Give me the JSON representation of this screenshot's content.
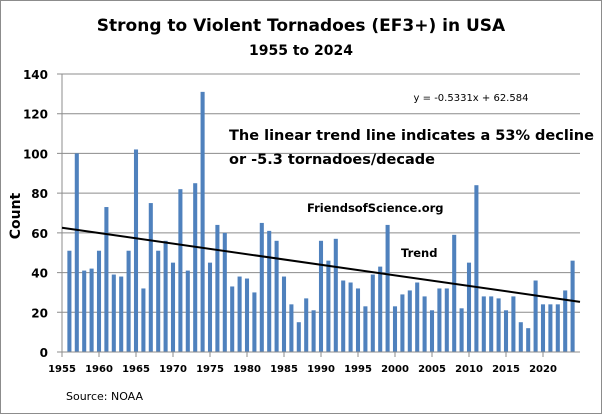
{
  "chart_data": {
    "type": "bar",
    "title": "Strong to Violent Tornadoes  (EF3+) in USA",
    "subtitle": "1955 to 2024",
    "xlabel": "",
    "ylabel": "Count",
    "ylim": [
      0,
      140
    ],
    "xlim": [
      1955,
      2025
    ],
    "yticks": [
      0,
      20,
      40,
      60,
      80,
      100,
      120,
      140
    ],
    "xticks": [
      1955,
      1960,
      1965,
      1970,
      1975,
      1980,
      1985,
      1990,
      1995,
      2000,
      2005,
      2010,
      2015,
      2020
    ],
    "grid": true,
    "bar_color": "#4f81bd",
    "categories": [
      1956,
      1957,
      1958,
      1959,
      1960,
      1961,
      1962,
      1963,
      1964,
      1965,
      1966,
      1967,
      1968,
      1969,
      1970,
      1971,
      1972,
      1973,
      1974,
      1975,
      1976,
      1977,
      1978,
      1979,
      1980,
      1981,
      1982,
      1983,
      1984,
      1985,
      1986,
      1987,
      1988,
      1989,
      1990,
      1991,
      1992,
      1993,
      1994,
      1995,
      1996,
      1997,
      1998,
      1999,
      2000,
      2001,
      2002,
      2003,
      2004,
      2005,
      2006,
      2007,
      2008,
      2009,
      2010,
      2011,
      2012,
      2013,
      2014,
      2015,
      2016,
      2017,
      2018,
      2019,
      2020,
      2021,
      2022,
      2023,
      2024
    ],
    "values": [
      51,
      100,
      41,
      42,
      51,
      73,
      39,
      38,
      51,
      102,
      32,
      75,
      51,
      56,
      45,
      82,
      41,
      85,
      131,
      45,
      64,
      60,
      33,
      38,
      37,
      30,
      65,
      61,
      56,
      38,
      24,
      15,
      27,
      21,
      56,
      46,
      57,
      36,
      35,
      32,
      23,
      39,
      43,
      64,
      23,
      29,
      31,
      35,
      28,
      21,
      32,
      32,
      59,
      22,
      45,
      84,
      28,
      28,
      27,
      21,
      28,
      15,
      12,
      36,
      24,
      24,
      24,
      31,
      46
    ],
    "trendline": {
      "label": "Trend",
      "equation": "y = -0.5331x + 62.584",
      "slope": -0.5331,
      "intercept": 62.584,
      "color": "#000000"
    },
    "annotations": {
      "line1": "The linear trend line indicates a 53% decline",
      "line2": "or -5.3 tornadoes/decade",
      "watermark": "FriendsofScience.org",
      "source": "Source: NOAA"
    }
  }
}
